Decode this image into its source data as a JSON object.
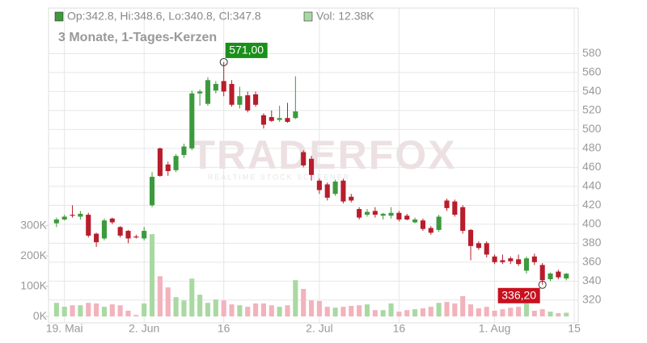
{
  "chart_data": {
    "type": "candlestick",
    "ohlc_label": "Op:342.8, Hi:348.6, Lo:340.8, Cl:347.8",
    "volume_label": "Vol: 12.38K",
    "subtitle": "3 Monate, 1-Tages-Kerzen",
    "watermark": "TRADERFOX",
    "watermark_sub": "REALTIME STOCK SCREENER",
    "x": [
      0,
      1,
      2,
      3,
      4,
      5,
      6,
      7,
      8,
      9,
      10,
      11,
      12,
      13,
      14,
      15,
      16,
      17,
      18,
      19,
      20,
      21,
      22,
      23,
      24,
      25,
      26,
      27,
      28,
      29,
      30,
      31,
      32,
      33,
      34,
      35,
      36,
      37,
      38,
      39,
      40,
      41,
      42,
      43,
      44,
      45,
      46,
      47,
      48,
      49,
      50,
      51,
      52,
      53,
      54,
      55,
      56,
      57,
      58,
      59,
      60,
      61,
      62,
      63,
      64
    ],
    "open": [
      401,
      405,
      410,
      408,
      410,
      390,
      385,
      406,
      397,
      393,
      387,
      385,
      420,
      480,
      463,
      457,
      473,
      480,
      538,
      527,
      541,
      551,
      548,
      526,
      536,
      537,
      515,
      513,
      510,
      512,
      512,
      476,
      469,
      446,
      442,
      432,
      446,
      429,
      416,
      410,
      414,
      409,
      409,
      412,
      409,
      402,
      404,
      396,
      394,
      425,
      424,
      418,
      394,
      380,
      380,
      366,
      362,
      364,
      363,
      351,
      366,
      357,
      342,
      350,
      342.8
    ],
    "high": [
      407,
      410,
      420,
      414,
      412,
      391,
      406,
      407,
      398,
      394,
      389,
      397,
      455,
      481,
      466,
      474,
      485,
      541,
      542,
      555,
      551,
      571,
      552,
      545,
      540,
      540,
      517,
      520,
      525,
      528,
      556,
      478,
      472,
      448,
      444,
      447,
      448,
      432,
      418,
      416,
      418,
      412,
      418,
      414,
      411,
      407,
      406,
      398,
      410,
      427,
      426,
      420,
      395,
      382,
      382,
      368,
      368,
      366,
      368,
      366,
      369,
      359,
      349,
      352,
      348.6
    ],
    "low": [
      397,
      404,
      407,
      405,
      386,
      376,
      383,
      400,
      386,
      380,
      385,
      383,
      418,
      450,
      451,
      455,
      470,
      478,
      525,
      525,
      538,
      535,
      524,
      522,
      518,
      524,
      501,
      508,
      508,
      507,
      511,
      460,
      446,
      432,
      425,
      430,
      422,
      423,
      405,
      408,
      407,
      405,
      406,
      403,
      404,
      401,
      393,
      389,
      392,
      414,
      408,
      390,
      362,
      373,
      365,
      358,
      358,
      358,
      356,
      348,
      357,
      336.2,
      340,
      342,
      340.8
    ],
    "close": [
      405,
      408,
      409,
      411,
      388,
      381,
      404,
      402,
      388,
      385,
      386,
      393,
      450,
      451,
      456,
      472,
      482,
      538,
      540,
      552,
      548,
      540,
      526,
      535,
      520,
      526,
      505,
      509,
      512,
      508,
      519,
      462,
      452,
      436,
      428,
      445,
      424,
      425,
      407,
      413,
      410,
      411,
      412,
      405,
      405,
      405,
      395,
      391,
      408,
      417,
      410,
      393,
      377,
      375,
      368,
      360,
      360,
      361,
      358,
      364,
      360,
      341,
      348,
      344,
      347.8
    ],
    "volume": [
      45,
      32,
      37,
      37,
      45,
      43,
      32,
      40,
      37,
      19,
      5,
      43,
      272,
      133,
      96,
      64,
      53,
      125,
      72,
      45,
      56,
      53,
      40,
      37,
      32,
      43,
      43,
      37,
      32,
      37,
      120,
      91,
      53,
      51,
      32,
      29,
      32,
      35,
      37,
      40,
      21,
      21,
      43,
      16,
      21,
      24,
      27,
      32,
      45,
      48,
      43,
      67,
      40,
      27,
      32,
      19,
      24,
      29,
      32,
      43,
      19,
      24,
      16,
      11,
      12.38
    ],
    "up_color": "#3c9a3c",
    "down_color": "#b81d2c",
    "volume_up_color": "#a9d9a2",
    "volume_down_color": "#f2b3bc",
    "xlim": [
      -1,
      65.5
    ],
    "xticks": [
      {
        "value": 1,
        "label": "19. Mai"
      },
      {
        "value": 11,
        "label": "2. Jun"
      },
      {
        "value": 21,
        "label": "16"
      },
      {
        "value": 33,
        "label": "2. Jul"
      },
      {
        "value": 43,
        "label": "16"
      },
      {
        "value": 55,
        "label": "1. Aug"
      },
      {
        "value": 65,
        "label": "15"
      }
    ],
    "ylim": [
      296,
      628
    ],
    "yticks": [
      320,
      340,
      360,
      380,
      400,
      420,
      440,
      460,
      480,
      500,
      520,
      540,
      560,
      580
    ],
    "y2lim": [
      -21,
      1019
    ],
    "y2ticks": [
      {
        "value": 0,
        "label": "0K"
      },
      {
        "value": 100,
        "label": "100K"
      },
      {
        "value": 200,
        "label": "200K"
      },
      {
        "value": 300,
        "label": "300K"
      }
    ],
    "grid": true,
    "annotations": [
      {
        "label": "571,00",
        "x": 21,
        "value": 571,
        "color": "#1a8f1a"
      },
      {
        "label": "336,20",
        "x": 61,
        "value": 336.2,
        "color": "#c8101e"
      }
    ]
  }
}
